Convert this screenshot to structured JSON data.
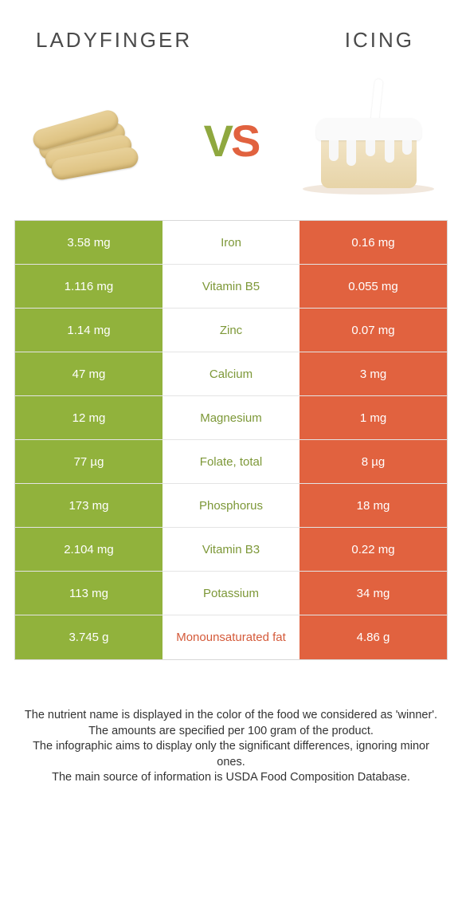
{
  "header": {
    "left_title": "Ladyfinger",
    "right_title": "Icing"
  },
  "vs": {
    "v": "V",
    "s": "S"
  },
  "colors": {
    "green": "#91b23c",
    "orange": "#e1623f",
    "green_text": "#7d9838",
    "orange_text": "#d45a3a",
    "border": "#d8d8d8",
    "row_border": "#e4e4e4",
    "background": "#ffffff"
  },
  "table": {
    "rows": [
      {
        "left": "3.58 mg",
        "label": "Iron",
        "right": "0.16 mg",
        "winner": "left"
      },
      {
        "left": "1.116 mg",
        "label": "Vitamin B5",
        "right": "0.055 mg",
        "winner": "left"
      },
      {
        "left": "1.14 mg",
        "label": "Zinc",
        "right": "0.07 mg",
        "winner": "left"
      },
      {
        "left": "47 mg",
        "label": "Calcium",
        "right": "3 mg",
        "winner": "left"
      },
      {
        "left": "12 mg",
        "label": "Magnesium",
        "right": "1 mg",
        "winner": "left"
      },
      {
        "left": "77 µg",
        "label": "Folate, total",
        "right": "8 µg",
        "winner": "left"
      },
      {
        "left": "173 mg",
        "label": "Phosphorus",
        "right": "18 mg",
        "winner": "left"
      },
      {
        "left": "2.104 mg",
        "label": "Vitamin B3",
        "right": "0.22 mg",
        "winner": "left"
      },
      {
        "left": "113 mg",
        "label": "Potassium",
        "right": "34 mg",
        "winner": "left"
      },
      {
        "left": "3.745 g",
        "label": "Monounsaturated fat",
        "right": "4.86 g",
        "winner": "right"
      }
    ]
  },
  "footer": {
    "line1": "The nutrient name is displayed in the color of the food we considered as 'winner'.",
    "line2": "The amounts are specified per 100 gram of the product.",
    "line3": "The infographic aims to display only the significant differences, ignoring minor ones.",
    "line4": "The main source of information is USDA Food Composition Database."
  }
}
